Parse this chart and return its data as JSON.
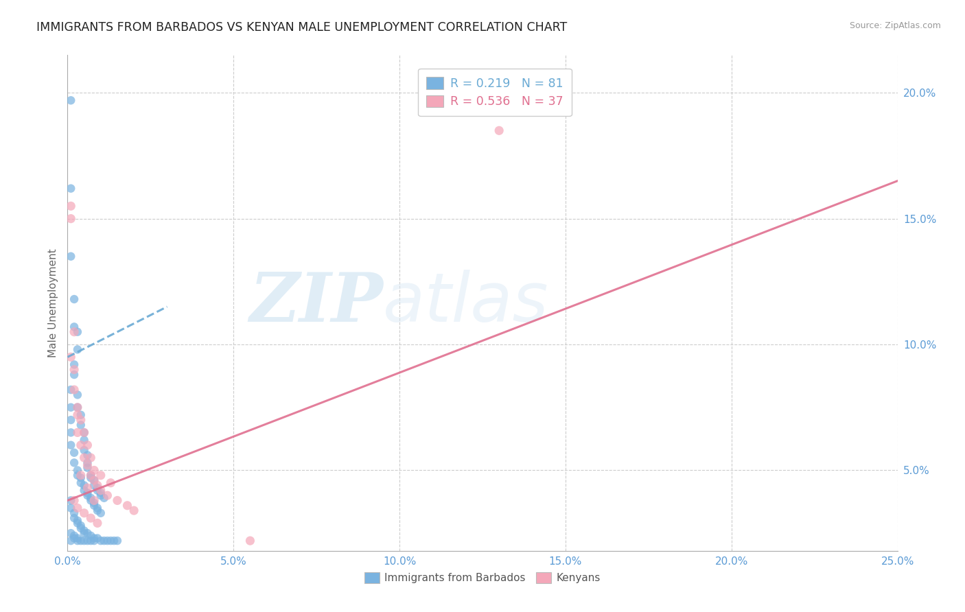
{
  "title": "IMMIGRANTS FROM BARBADOS VS KENYAN MALE UNEMPLOYMENT CORRELATION CHART",
  "source": "Source: ZipAtlas.com",
  "ylabel": "Male Unemployment",
  "r_blue": 0.219,
  "n_blue": 81,
  "r_pink": 0.536,
  "n_pink": 37,
  "xlim": [
    0.0,
    0.25
  ],
  "ylim": [
    0.018,
    0.215
  ],
  "xticks": [
    0.0,
    0.05,
    0.1,
    0.15,
    0.2,
    0.25
  ],
  "yticks_right": [
    0.05,
    0.1,
    0.15,
    0.2
  ],
  "blue_color": "#7ab3e0",
  "pink_color": "#f4a7b9",
  "blue_line_color": "#6aaad4",
  "pink_line_color": "#e07090",
  "watermark_zip": "ZIP",
  "watermark_atlas": "atlas",
  "blue_trend_x": [
    0.0,
    0.03
  ],
  "blue_trend_y": [
    0.095,
    0.115
  ],
  "pink_trend_x": [
    0.0,
    0.25
  ],
  "pink_trend_y": [
    0.038,
    0.165
  ],
  "blue_scatter_x": [
    0.001,
    0.001,
    0.001,
    0.002,
    0.002,
    0.003,
    0.003,
    0.001,
    0.001,
    0.002,
    0.002,
    0.003,
    0.003,
    0.004,
    0.004,
    0.005,
    0.005,
    0.005,
    0.006,
    0.006,
    0.006,
    0.007,
    0.007,
    0.008,
    0.008,
    0.009,
    0.009,
    0.01,
    0.01,
    0.011,
    0.001,
    0.001,
    0.001,
    0.002,
    0.002,
    0.003,
    0.003,
    0.004,
    0.004,
    0.005,
    0.005,
    0.006,
    0.006,
    0.007,
    0.007,
    0.008,
    0.008,
    0.009,
    0.009,
    0.01,
    0.001,
    0.001,
    0.002,
    0.002,
    0.003,
    0.003,
    0.004,
    0.004,
    0.005,
    0.005,
    0.006,
    0.007,
    0.008,
    0.009,
    0.01,
    0.011,
    0.012,
    0.013,
    0.014,
    0.015,
    0.001,
    0.001,
    0.002,
    0.002,
    0.003,
    0.003,
    0.004,
    0.005,
    0.006,
    0.007,
    0.008
  ],
  "blue_scatter_y": [
    0.197,
    0.162,
    0.135,
    0.118,
    0.107,
    0.105,
    0.098,
    0.082,
    0.075,
    0.092,
    0.088,
    0.08,
    0.075,
    0.072,
    0.068,
    0.065,
    0.062,
    0.058,
    0.056,
    0.053,
    0.051,
    0.048,
    0.047,
    0.046,
    0.044,
    0.043,
    0.042,
    0.041,
    0.04,
    0.039,
    0.07,
    0.065,
    0.06,
    0.057,
    0.053,
    0.05,
    0.048,
    0.047,
    0.045,
    0.044,
    0.042,
    0.041,
    0.04,
    0.039,
    0.038,
    0.037,
    0.036,
    0.035,
    0.034,
    0.033,
    0.038,
    0.035,
    0.033,
    0.031,
    0.03,
    0.029,
    0.028,
    0.027,
    0.026,
    0.025,
    0.025,
    0.024,
    0.023,
    0.023,
    0.022,
    0.022,
    0.022,
    0.022,
    0.022,
    0.022,
    0.025,
    0.022,
    0.024,
    0.023,
    0.023,
    0.022,
    0.022,
    0.022,
    0.022,
    0.022,
    0.022
  ],
  "pink_scatter_x": [
    0.001,
    0.001,
    0.002,
    0.002,
    0.003,
    0.003,
    0.004,
    0.005,
    0.006,
    0.007,
    0.008,
    0.009,
    0.01,
    0.012,
    0.015,
    0.018,
    0.02,
    0.001,
    0.002,
    0.003,
    0.004,
    0.005,
    0.006,
    0.007,
    0.008,
    0.01,
    0.013,
    0.13,
    0.002,
    0.003,
    0.005,
    0.007,
    0.009,
    0.055,
    0.004,
    0.006,
    0.008
  ],
  "pink_scatter_y": [
    0.155,
    0.15,
    0.105,
    0.09,
    0.072,
    0.065,
    0.06,
    0.055,
    0.052,
    0.048,
    0.046,
    0.044,
    0.042,
    0.04,
    0.038,
    0.036,
    0.034,
    0.095,
    0.082,
    0.075,
    0.07,
    0.065,
    0.06,
    0.055,
    0.05,
    0.048,
    0.045,
    0.185,
    0.038,
    0.035,
    0.033,
    0.031,
    0.029,
    0.022,
    0.048,
    0.043,
    0.038
  ]
}
